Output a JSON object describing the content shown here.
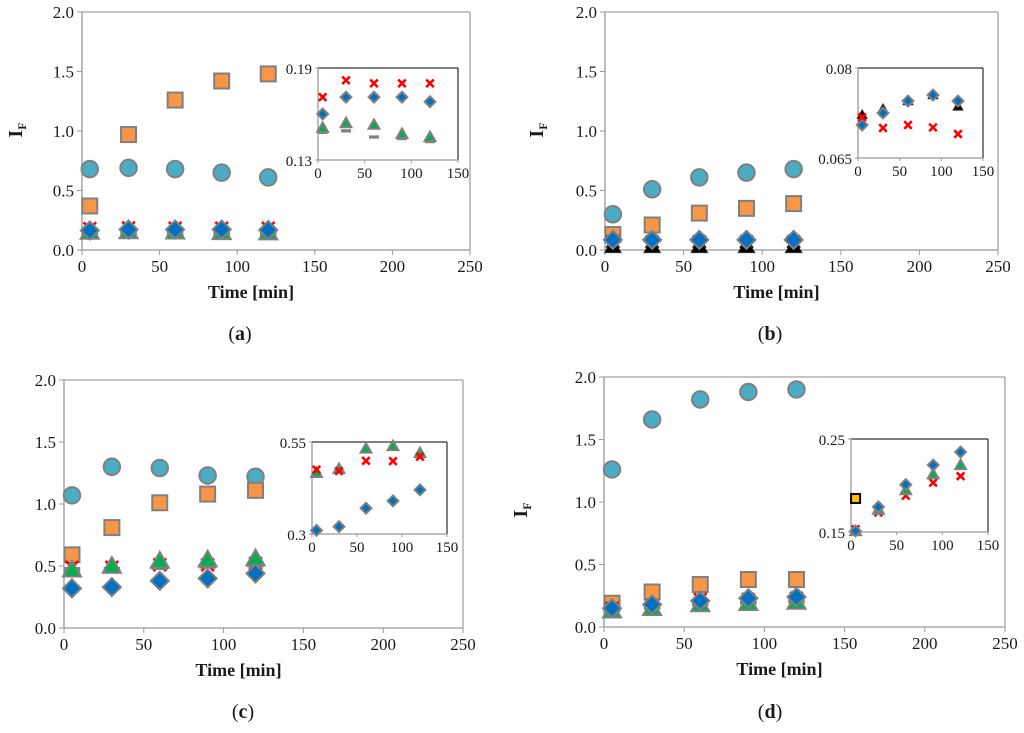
{
  "figure": {
    "marker_colors": {
      "circle": "#4BACC6",
      "square": "#F79646",
      "diamond": "#0070C0",
      "triangle": "#00B050",
      "cross": "#FF0000",
      "dash": "#808080",
      "outline": "#808080",
      "black_triangle": "#000000",
      "yellow_square": "#FFC000"
    }
  },
  "chart_data": [
    {
      "id": "a",
      "type": "scatter",
      "panel_label": "a",
      "xlabel": "Time [min]",
      "ylabel": "I",
      "ylabel_sub": "F",
      "xlim": [
        0,
        250
      ],
      "ylim": [
        0,
        2.0
      ],
      "xticks": [
        "0",
        "50",
        "100",
        "150",
        "200",
        "250"
      ],
      "yticks": [
        "0.0",
        "0.5",
        "1.0",
        "1.5",
        "2.0"
      ],
      "grid": false,
      "x": [
        5,
        30,
        60,
        90,
        120
      ],
      "series": [
        {
          "name": "circle",
          "marker": "circle",
          "values": [
            0.68,
            0.69,
            0.68,
            0.65,
            0.61
          ]
        },
        {
          "name": "square",
          "marker": "square",
          "values": [
            0.37,
            0.97,
            1.26,
            1.42,
            1.48
          ]
        },
        {
          "name": "cross",
          "marker": "cross",
          "values": [
            0.18,
            0.185,
            0.183,
            0.183,
            0.183
          ]
        },
        {
          "name": "dash",
          "marker": "dash",
          "values": [
            0.147,
            0.152,
            0.146,
            0.144,
            0.142
          ]
        },
        {
          "name": "triangle",
          "marker": "triangle",
          "values": [
            0.151,
            0.155,
            0.153,
            0.148,
            0.146
          ]
        },
        {
          "name": "diamond",
          "marker": "diamond",
          "values": [
            0.164,
            0.172,
            0.172,
            0.172,
            0.168
          ]
        }
      ],
      "inset": {
        "xlim": [
          0,
          150
        ],
        "ylim": [
          0.13,
          0.19
        ],
        "xticks": [
          "0",
          "50",
          "100",
          "150"
        ],
        "yticks": [
          "0.13",
          "0.19"
        ],
        "x": [
          5,
          30,
          60,
          90,
          120
        ],
        "series": [
          {
            "name": "cross",
            "marker": "cross",
            "values": [
              0.171,
              0.182,
              0.18,
              0.18,
              0.18
            ]
          },
          {
            "name": "diamond",
            "marker": "diamond",
            "values": [
              0.16,
              0.171,
              0.171,
              0.171,
              0.168
            ]
          },
          {
            "name": "dash",
            "marker": "dash",
            "values": [
              0.148,
              0.149,
              0.145,
              0.144,
              0.142
            ]
          },
          {
            "name": "triangle",
            "marker": "triangle",
            "values": [
              0.151,
              0.154,
              0.153,
              0.147,
              0.145
            ]
          }
        ]
      }
    },
    {
      "id": "b",
      "type": "scatter",
      "panel_label": "b",
      "xlabel": "Time [min]",
      "ylabel": "I",
      "ylabel_sub": "F",
      "xlim": [
        0,
        250
      ],
      "ylim": [
        0,
        2.0
      ],
      "xticks": [
        "0",
        "50",
        "100",
        "150",
        "200",
        "250"
      ],
      "yticks": [
        "0.0",
        "0.5",
        "1.0",
        "1.5",
        "2.0"
      ],
      "grid": false,
      "x": [
        5,
        30,
        60,
        90,
        120
      ],
      "series": [
        {
          "name": "circle",
          "marker": "circle",
          "values": [
            0.3,
            0.51,
            0.61,
            0.65,
            0.68
          ]
        },
        {
          "name": "square",
          "marker": "square",
          "values": [
            0.13,
            0.21,
            0.31,
            0.35,
            0.39
          ]
        },
        {
          "name": "black-cross",
          "marker": "black_cross",
          "values": [
            0.07,
            0.07,
            0.07,
            0.07,
            0.07
          ]
        },
        {
          "name": "black-triangle",
          "marker": "black_triangle",
          "values": [
            0.03,
            0.03,
            0.03,
            0.03,
            0.03
          ]
        },
        {
          "name": "diamond",
          "marker": "diamond",
          "values": [
            0.085,
            0.085,
            0.085,
            0.085,
            0.085
          ]
        }
      ],
      "inset": {
        "xlim": [
          0,
          150
        ],
        "ylim": [
          0.065,
          0.08
        ],
        "xticks": [
          "0",
          "50",
          "100",
          "150"
        ],
        "yticks": [
          "0.065",
          "0.08"
        ],
        "x": [
          5,
          30,
          60,
          90,
          120
        ],
        "series": [
          {
            "name": "black-triangle",
            "marker": "black_triangle",
            "values": [
              0.0722,
              0.0732,
              0.0745,
              0.0755,
              0.0736
            ]
          },
          {
            "name": "diamond",
            "marker": "diamond",
            "values": [
              0.0705,
              0.0725,
              0.0745,
              0.0755,
              0.0745
            ]
          },
          {
            "name": "cross",
            "marker": "cross",
            "values": [
              0.0718,
              0.07,
              0.0705,
              0.0701,
              0.069
            ]
          }
        ]
      }
    },
    {
      "id": "c",
      "type": "scatter",
      "panel_label": "c",
      "xlabel": "Time [min]",
      "ylabel": "",
      "ylabel_sub": "",
      "xlim": [
        0,
        250
      ],
      "ylim": [
        0,
        2.0
      ],
      "xticks": [
        "0",
        "50",
        "100",
        "150",
        "200",
        "250"
      ],
      "yticks": [
        "0.0",
        "0.5",
        "1.0",
        "1.5",
        "2.0"
      ],
      "grid": false,
      "x": [
        5,
        30,
        60,
        90,
        120
      ],
      "series": [
        {
          "name": "circle",
          "marker": "circle",
          "values": [
            1.07,
            1.3,
            1.29,
            1.23,
            1.22
          ]
        },
        {
          "name": "square",
          "marker": "square",
          "values": [
            0.59,
            0.81,
            1.01,
            1.08,
            1.11
          ]
        },
        {
          "name": "cross",
          "marker": "cross",
          "values": [
            0.49,
            0.49,
            0.51,
            0.51,
            0.52
          ]
        },
        {
          "name": "dash",
          "marker": "dash",
          "values": [
            0.47,
            0.47,
            0.49,
            0.5,
            0.51
          ]
        },
        {
          "name": "triangle",
          "marker": "triangle",
          "values": [
            0.47,
            0.5,
            0.54,
            0.55,
            0.56
          ]
        },
        {
          "name": "diamond",
          "marker": "diamond",
          "values": [
            0.32,
            0.33,
            0.38,
            0.4,
            0.44
          ]
        }
      ],
      "inset": {
        "xlim": [
          0,
          150
        ],
        "ylim": [
          0.3,
          0.55
        ],
        "xticks": [
          "0",
          "50",
          "100",
          "150"
        ],
        "yticks": [
          "0.3",
          "0.55"
        ],
        "x": [
          5,
          30,
          60,
          90,
          120
        ],
        "series": [
          {
            "name": "triangle",
            "marker": "triangle",
            "values": [
              0.466,
              0.477,
              0.532,
              0.539,
              0.52
            ]
          },
          {
            "name": "cross",
            "marker": "cross",
            "values": [
              0.475,
              0.471,
              0.499,
              0.498,
              0.51
            ]
          },
          {
            "name": "diamond",
            "marker": "diamond",
            "values": [
              0.31,
              0.32,
              0.37,
              0.39,
              0.42
            ]
          }
        ]
      }
    },
    {
      "id": "d",
      "type": "scatter",
      "panel_label": "d",
      "xlabel": "Time [min]",
      "ylabel": "I",
      "ylabel_sub": "F",
      "xlim": [
        0,
        250
      ],
      "ylim": [
        0,
        2.0
      ],
      "xticks": [
        "0",
        "50",
        "100",
        "150",
        "200",
        "250"
      ],
      "yticks": [
        "0.0",
        "0.5",
        "1.0",
        "1.5",
        "2.0"
      ],
      "grid": false,
      "x": [
        5,
        30,
        60,
        90,
        120
      ],
      "series": [
        {
          "name": "circle",
          "marker": "circle",
          "values": [
            1.26,
            1.66,
            1.82,
            1.88,
            1.9
          ]
        },
        {
          "name": "square",
          "marker": "square",
          "values": [
            0.19,
            0.28,
            0.34,
            0.38,
            0.38
          ]
        },
        {
          "name": "cross",
          "marker": "cross",
          "values": [
            0.15,
            0.17,
            0.22,
            0.22,
            0.23
          ]
        },
        {
          "name": "dash",
          "marker": "dash",
          "values": [
            0.14,
            0.16,
            0.19,
            0.2,
            0.21
          ]
        },
        {
          "name": "triangle",
          "marker": "triangle",
          "values": [
            0.13,
            0.15,
            0.18,
            0.19,
            0.2
          ]
        },
        {
          "name": "diamond",
          "marker": "diamond",
          "values": [
            0.15,
            0.18,
            0.21,
            0.23,
            0.24
          ]
        }
      ],
      "inset": {
        "xlim": [
          0,
          150
        ],
        "ylim": [
          0.15,
          0.25
        ],
        "xticks": [
          "0",
          "50",
          "100",
          "150"
        ],
        "yticks": [
          "0.15",
          "0.25"
        ],
        "x": [
          5,
          30,
          60,
          90,
          120
        ],
        "series": [
          {
            "name": "yellow-square",
            "marker": "yellow_square",
            "x": [
              5
            ],
            "values": [
              0.186
            ]
          },
          {
            "name": "cross",
            "marker": "cross",
            "values": [
              0.153,
              0.171,
              0.189,
              0.203,
              0.21
            ]
          },
          {
            "name": "triangle",
            "marker": "triangle",
            "values": [
              0.151,
              0.174,
              0.195,
              0.212,
              0.222
            ]
          },
          {
            "name": "diamond",
            "marker": "diamond",
            "values": [
              0.151,
              0.177,
              0.201,
              0.222,
              0.236
            ]
          }
        ]
      }
    }
  ]
}
